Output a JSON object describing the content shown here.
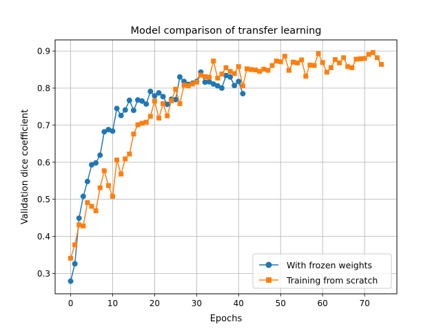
{
  "chart_data": {
    "type": "line",
    "title": "Model comparison of transfer learning",
    "xlabel": "Epochs",
    "ylabel": "Validation dice coefficient",
    "xlim": [
      -3.7,
      77.7
    ],
    "ylim": [
      0.245,
      0.93
    ],
    "xticks": [
      0,
      10,
      20,
      30,
      40,
      50,
      60,
      70
    ],
    "yticks": [
      0.3,
      0.4,
      0.5,
      0.6,
      0.7,
      0.8,
      0.9
    ],
    "grid": true,
    "legend_position": "lower-right",
    "series": [
      {
        "name": "With frozen weights",
        "color": "#1f77b4",
        "marker": "circle",
        "x": [
          0,
          1,
          2,
          3,
          4,
          5,
          6,
          7,
          8,
          9,
          10,
          11,
          12,
          13,
          14,
          15,
          16,
          17,
          18,
          19,
          20,
          21,
          22,
          23,
          24,
          25,
          26,
          27,
          28,
          29,
          30,
          31,
          32,
          33,
          34,
          35,
          36,
          37,
          38,
          39,
          40,
          41
        ],
        "values": [
          0.279,
          0.326,
          0.449,
          0.508,
          0.548,
          0.593,
          0.598,
          0.619,
          0.682,
          0.688,
          0.684,
          0.745,
          0.726,
          0.741,
          0.767,
          0.74,
          0.768,
          0.765,
          0.757,
          0.791,
          0.779,
          0.787,
          0.777,
          0.756,
          0.77,
          0.769,
          0.83,
          0.818,
          0.81,
          0.813,
          0.818,
          0.843,
          0.816,
          0.817,
          0.811,
          0.806,
          0.8,
          0.834,
          0.83,
          0.807,
          0.818,
          0.785
        ]
      },
      {
        "name": "Training from scratch",
        "color": "#ff7f0e",
        "marker": "square",
        "x": [
          0,
          1,
          2,
          3,
          4,
          5,
          6,
          7,
          8,
          9,
          10,
          11,
          12,
          13,
          14,
          15,
          16,
          17,
          18,
          19,
          20,
          21,
          22,
          23,
          24,
          25,
          26,
          27,
          28,
          29,
          30,
          31,
          32,
          33,
          34,
          35,
          36,
          37,
          38,
          39,
          40,
          41,
          42,
          43,
          44,
          45,
          46,
          47,
          48,
          49,
          50,
          51,
          52,
          53,
          54,
          55,
          56,
          57,
          58,
          59,
          60,
          61,
          62,
          63,
          64,
          65,
          66,
          67,
          68,
          69,
          70,
          71,
          72,
          73,
          74
        ],
        "values": [
          0.341,
          0.377,
          0.431,
          0.428,
          0.491,
          0.481,
          0.469,
          0.531,
          0.577,
          0.537,
          0.508,
          0.606,
          0.568,
          0.609,
          0.622,
          0.676,
          0.701,
          0.705,
          0.708,
          0.724,
          0.765,
          0.719,
          0.758,
          0.725,
          0.766,
          0.797,
          0.758,
          0.808,
          0.806,
          0.811,
          0.816,
          0.835,
          0.831,
          0.829,
          0.873,
          0.827,
          0.838,
          0.855,
          0.845,
          0.839,
          0.858,
          0.806,
          0.852,
          0.85,
          0.849,
          0.845,
          0.851,
          0.848,
          0.861,
          0.873,
          0.871,
          0.886,
          0.848,
          0.87,
          0.868,
          0.876,
          0.832,
          0.862,
          0.861,
          0.893,
          0.869,
          0.843,
          0.855,
          0.877,
          0.868,
          0.882,
          0.858,
          0.855,
          0.878,
          0.879,
          0.88,
          0.891,
          0.896,
          0.882,
          0.864
        ]
      }
    ]
  }
}
